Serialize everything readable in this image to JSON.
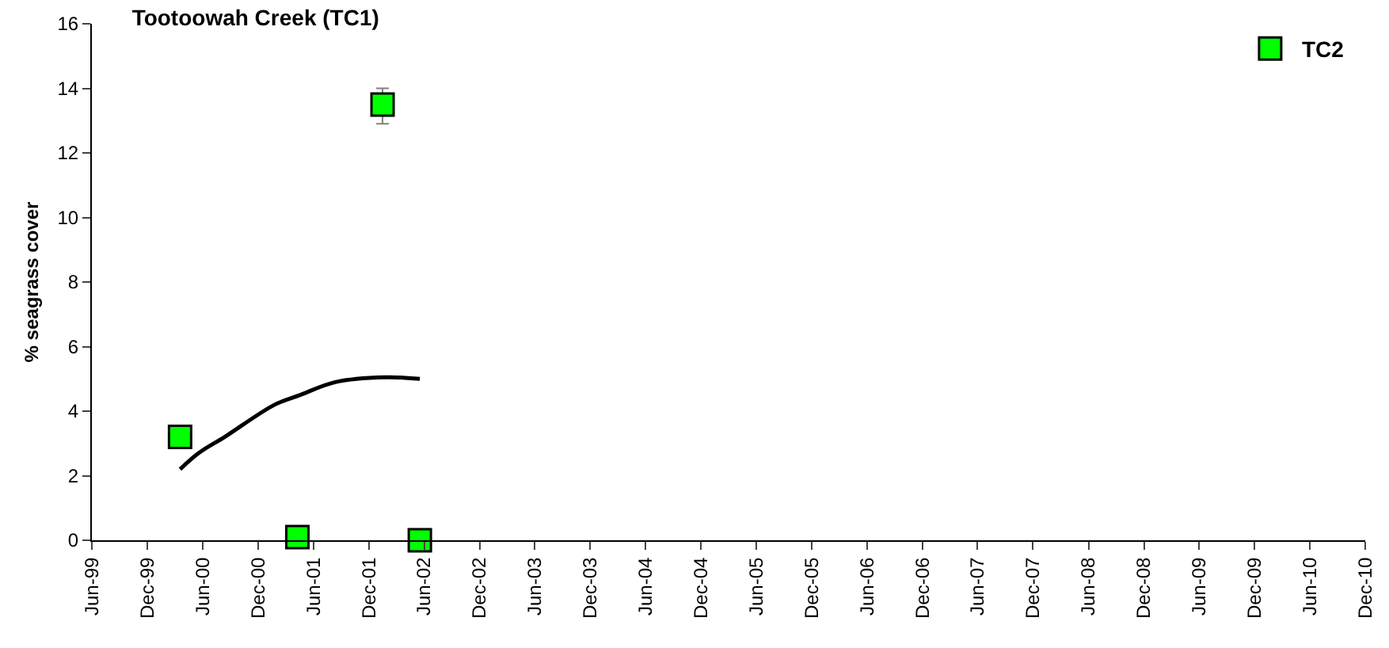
{
  "chart_data": {
    "type": "scatter",
    "title": "Tootoowah Creek (TC1)",
    "ylabel": "% seagrass cover",
    "x": [
      "2000-03-18",
      "2001-04-09",
      "2002-01-15",
      "2002-05-18"
    ],
    "series": [
      {
        "name": "TC2",
        "color": "#00ff00",
        "marker": "square",
        "values": [
          3.2,
          0.1,
          13.5,
          0
        ],
        "errors": [
          null,
          null,
          [
            12.9,
            14.0
          ],
          null
        ]
      },
      {
        "type": "line",
        "color": "#000000",
        "marker": "none",
        "line_style": "solid",
        "x": [
          "2000-03-18",
          "2000-05-18",
          "2000-08-12",
          "2001-01-24",
          "2001-04-18",
          "2001-08-12",
          "2002-01-24",
          "2002-05-18"
        ],
        "values": [
          2.2,
          2.7,
          3.2,
          4.2,
          4.5,
          4.9,
          5.05,
          5.0
        ]
      }
    ],
    "xlim": [
      "1999-06-01",
      "2010-12-01"
    ],
    "xticks": [
      {
        "value": "1999-06-01",
        "label": "Jun-99"
      },
      {
        "value": "1999-12-01",
        "label": "Dec-99"
      },
      {
        "value": "2000-06-01",
        "label": "Jun-00"
      },
      {
        "value": "2000-12-01",
        "label": "Dec-00"
      },
      {
        "value": "2001-06-01",
        "label": "Jun-01"
      },
      {
        "value": "2001-12-01",
        "label": "Dec-01"
      },
      {
        "value": "2002-06-01",
        "label": "Jun-02"
      },
      {
        "value": "2002-12-01",
        "label": "Dec-02"
      },
      {
        "value": "2003-06-01",
        "label": "Jun-03"
      },
      {
        "value": "2003-12-01",
        "label": "Dec-03"
      },
      {
        "value": "2004-06-01",
        "label": "Jun-04"
      },
      {
        "value": "2004-12-01",
        "label": "Dec-04"
      },
      {
        "value": "2005-06-01",
        "label": "Jun-05"
      },
      {
        "value": "2005-12-01",
        "label": "Dec-05"
      },
      {
        "value": "2006-06-01",
        "label": "Jun-06"
      },
      {
        "value": "2006-12-01",
        "label": "Dec-06"
      },
      {
        "value": "2007-06-01",
        "label": "Jun-07"
      },
      {
        "value": "2007-12-01",
        "label": "Dec-07"
      },
      {
        "value": "2008-06-01",
        "label": "Jun-08"
      },
      {
        "value": "2008-12-01",
        "label": "Dec-08"
      },
      {
        "value": "2009-06-01",
        "label": "Jun-09"
      },
      {
        "value": "2009-12-01",
        "label": "Dec-09"
      },
      {
        "value": "2010-06-01",
        "label": "Jun-10"
      },
      {
        "value": "2010-12-01",
        "label": "Dec-10"
      }
    ],
    "ylim": [
      0,
      16
    ],
    "yticks": [
      0,
      2,
      4,
      6,
      8,
      10,
      12,
      14,
      16
    ],
    "grid": false,
    "legend": "top right"
  }
}
